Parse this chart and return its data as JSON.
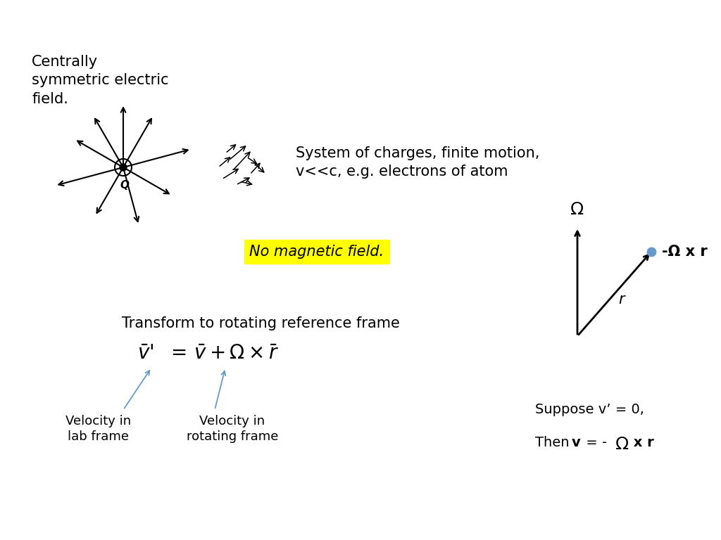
{
  "bg_color": "#ffffff",
  "title_text": "Centrally\nsymmetric electric\nfield.",
  "system_text": "System of charges, finite motion,\nv<<c, e.g. electrons of atom",
  "no_mag_text": "No magnetic field.",
  "transform_text": "Transform to rotating reference frame",
  "vel_lab_text": "Velocity in\nlab frame",
  "vel_rot_text": "Velocity in\nrotating frame",
  "omega_label": "Ω",
  "r_label": "r",
  "cross_omega_r_label": "-Ω x r",
  "arrow_color_blue": "#6699cc",
  "text_color": "#000000",
  "highlight_bg": "#ffff00",
  "font_size_main": 15,
  "font_size_small": 13,
  "font_size_highlight": 15,
  "font_size_transform": 15,
  "font_size_label": 13,
  "font_size_formula": 20,
  "font_size_omega": 18
}
